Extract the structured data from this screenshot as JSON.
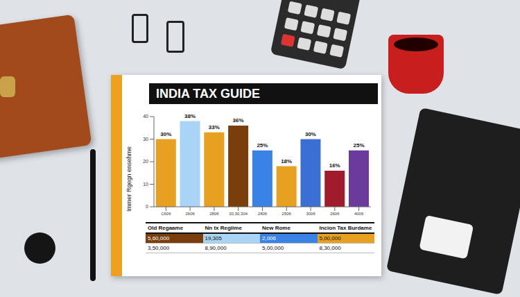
{
  "chart_data": {
    "type": "bar",
    "title": "INDIA TAX GUIDE",
    "y_label": "Immer Rgegn ensehme",
    "categories": [
      "C606",
      "2606",
      "2806",
      "30,30,304",
      "2806",
      "2506",
      "3006",
      "2606",
      "4006"
    ],
    "values": [
      30,
      38,
      33,
      36,
      25,
      18,
      30,
      16,
      25
    ],
    "value_labels": [
      "30%",
      "38%",
      "33%",
      "36%",
      "25%",
      "18%",
      "30%",
      "16%",
      "25%"
    ],
    "colors": [
      "#e8a020",
      "#a9d4f5",
      "#e8a020",
      "#7a3e0c",
      "#3b82e6",
      "#e8a020",
      "#3b6fd6",
      "#a01c2c",
      "#6a3b9c"
    ],
    "ylim": [
      0,
      40
    ],
    "yticks": [
      0,
      10,
      20,
      30,
      40
    ],
    "grid": false,
    "data_labels": true
  },
  "table": {
    "columns": [
      "Old Regaame",
      "Nn tx Regiime",
      "New Rome",
      "Incion Tax Burdame"
    ],
    "rows": [
      [
        "5,60,000",
        "19,305",
        "2,006",
        "5,00,000"
      ],
      [
        "3,50,000",
        "8,90,000",
        "5,00,000",
        "8,30,000"
      ]
    ]
  }
}
